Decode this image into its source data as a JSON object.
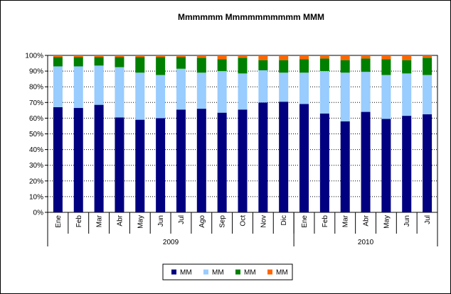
{
  "chart_data": {
    "type": "bar",
    "stacked": true,
    "percent": true,
    "title": "Mmmmmm Mmmmmmmmmm MMM",
    "xlabel": "",
    "ylabel": "",
    "ylim": [
      0,
      100
    ],
    "yticks": [
      "0%",
      "10%",
      "20%",
      "30%",
      "40%",
      "50%",
      "60%",
      "70%",
      "80%",
      "90%",
      "100%"
    ],
    "grid": true,
    "legend_position": "bottom",
    "categories": [
      "Ene",
      "Feb",
      "Mar",
      "Abr",
      "May",
      "Jun",
      "Jul",
      "Ago",
      "Sep",
      "Oct",
      "Nov",
      "Dic",
      "Ene",
      "Feb",
      "Mar",
      "Abr",
      "May",
      "Jun",
      "Jul"
    ],
    "groups": [
      {
        "label": "2009",
        "count": 12
      },
      {
        "label": "2010",
        "count": 7
      }
    ],
    "series": [
      {
        "name": "MM",
        "color": "#000080",
        "values": [
          67,
          66.5,
          68.5,
          60.5,
          59,
          60,
          65.5,
          66,
          63.5,
          65.5,
          70,
          70.5,
          69,
          63,
          58,
          64,
          59.5,
          61.5,
          62.5
        ]
      },
      {
        "name": "MM",
        "color": "#99CCFF",
        "values": [
          26,
          26.5,
          25,
          32,
          30,
          27.5,
          26,
          23,
          26.5,
          23,
          20.5,
          18.5,
          20,
          27,
          31,
          25.5,
          28,
          27,
          25
        ]
      },
      {
        "name": "MM",
        "color": "#008000",
        "values": [
          6,
          6,
          5.5,
          6.5,
          10,
          11.5,
          7.5,
          9.5,
          7.5,
          10,
          6.5,
          8,
          8.5,
          8,
          8,
          8.5,
          10,
          8.5,
          11
        ]
      },
      {
        "name": "MM",
        "color": "#FF6600",
        "values": [
          1,
          1,
          1,
          1,
          1,
          1,
          1,
          1.5,
          2.5,
          1.5,
          3,
          3,
          2.5,
          2,
          3,
          2,
          2.5,
          3,
          1.5
        ]
      }
    ]
  }
}
